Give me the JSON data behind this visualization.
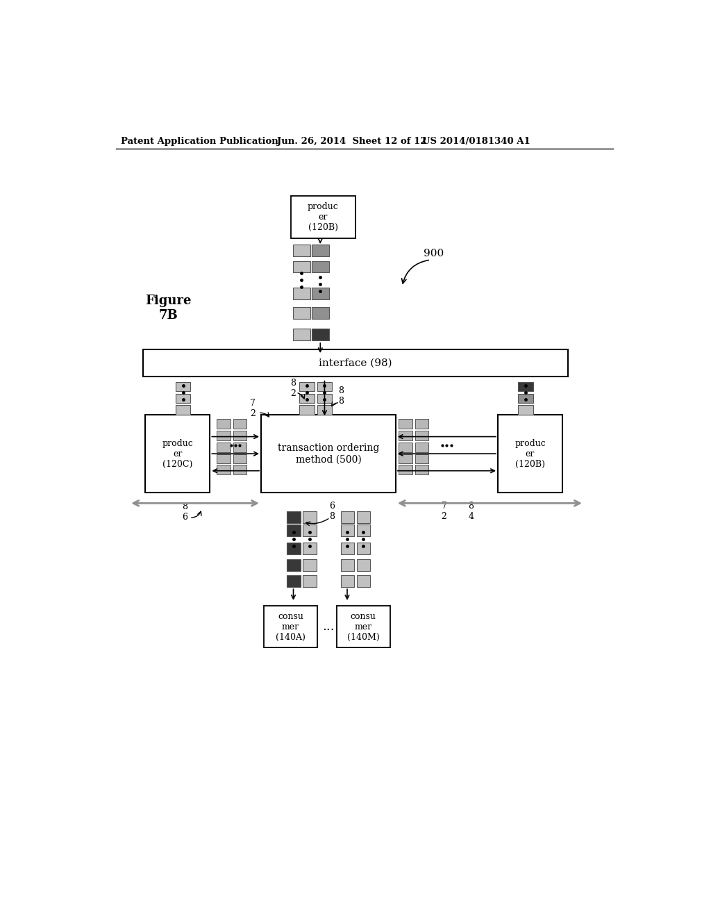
{
  "bg_color": "#ffffff",
  "header_text": "Patent Application Publication",
  "header_date": "Jun. 26, 2014  Sheet 12 of 12",
  "header_patent": "US 2014/0181340 A1",
  "figure_label": "Figure\n7B",
  "figure_number": "900",
  "interface_label": "interface (98)",
  "tom_label": "transaction ordering\nmethod (500)",
  "producer_top_label": "produc\ner\n(120B)",
  "producer_left_label": "produc\ner\n(120C)",
  "producer_right_label": "produc\ner\n(120B)",
  "consumer_left_label": "consu\nmer\n(140A)",
  "consumer_right_label": "consu\nmer\n(140M)",
  "label_72_left": "7\n2",
  "label_82": "8\n2",
  "label_88": "8\n8",
  "label_86": "8\n6",
  "label_68": "6\n8",
  "label_72_right": "7\n2",
  "label_84": "8\n4"
}
